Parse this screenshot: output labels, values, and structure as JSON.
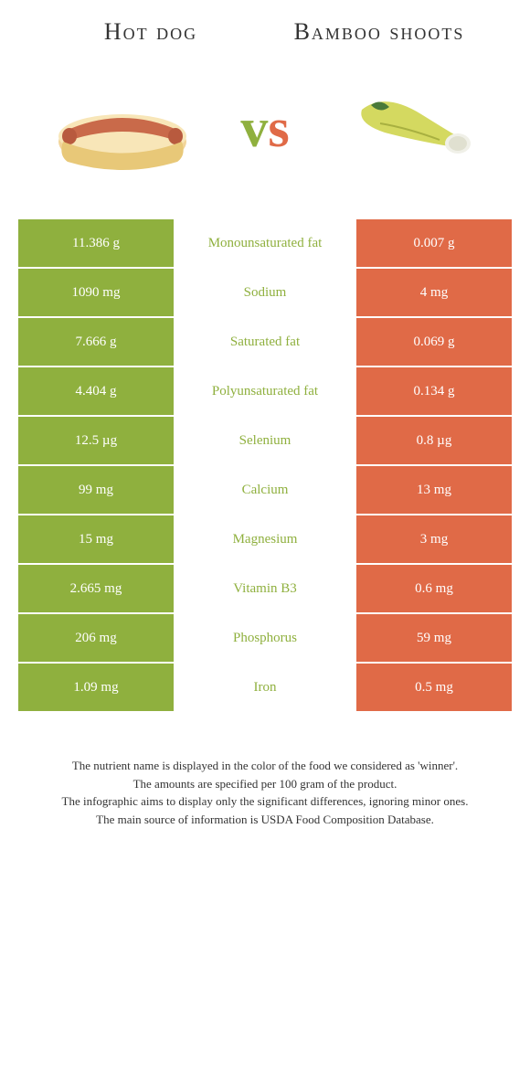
{
  "header": {
    "left_title": "Hot dog",
    "right_title": "Bamboo shoots",
    "vs_v": "v",
    "vs_s": "s"
  },
  "colors": {
    "left": "#8fb03e",
    "right": "#e06a47",
    "bg": "#ffffff"
  },
  "rows": [
    {
      "left": "11.386 g",
      "label": "Monounsaturated fat",
      "right": "0.007 g",
      "label_color": "#8fb03e"
    },
    {
      "left": "1090 mg",
      "label": "Sodium",
      "right": "4 mg",
      "label_color": "#8fb03e"
    },
    {
      "left": "7.666 g",
      "label": "Saturated fat",
      "right": "0.069 g",
      "label_color": "#8fb03e"
    },
    {
      "left": "4.404 g",
      "label": "Polyunsaturated fat",
      "right": "0.134 g",
      "label_color": "#8fb03e"
    },
    {
      "left": "12.5 µg",
      "label": "Selenium",
      "right": "0.8 µg",
      "label_color": "#8fb03e"
    },
    {
      "left": "99 mg",
      "label": "Calcium",
      "right": "13 mg",
      "label_color": "#8fb03e"
    },
    {
      "left": "15 mg",
      "label": "Magnesium",
      "right": "3 mg",
      "label_color": "#8fb03e"
    },
    {
      "left": "2.665 mg",
      "label": "Vitamin B3",
      "right": "0.6 mg",
      "label_color": "#8fb03e"
    },
    {
      "left": "206 mg",
      "label": "Phosphorus",
      "right": "59 mg",
      "label_color": "#8fb03e"
    },
    {
      "left": "1.09 mg",
      "label": "Iron",
      "right": "0.5 mg",
      "label_color": "#8fb03e"
    }
  ],
  "footer": {
    "line1": "The nutrient name is displayed in the color of the food we considered as 'winner'.",
    "line2": "The amounts are specified per 100 gram of the product.",
    "line3": "The infographic aims to display only the significant differences, ignoring minor ones.",
    "line4": "The main source of information is USDA Food Composition Database."
  }
}
